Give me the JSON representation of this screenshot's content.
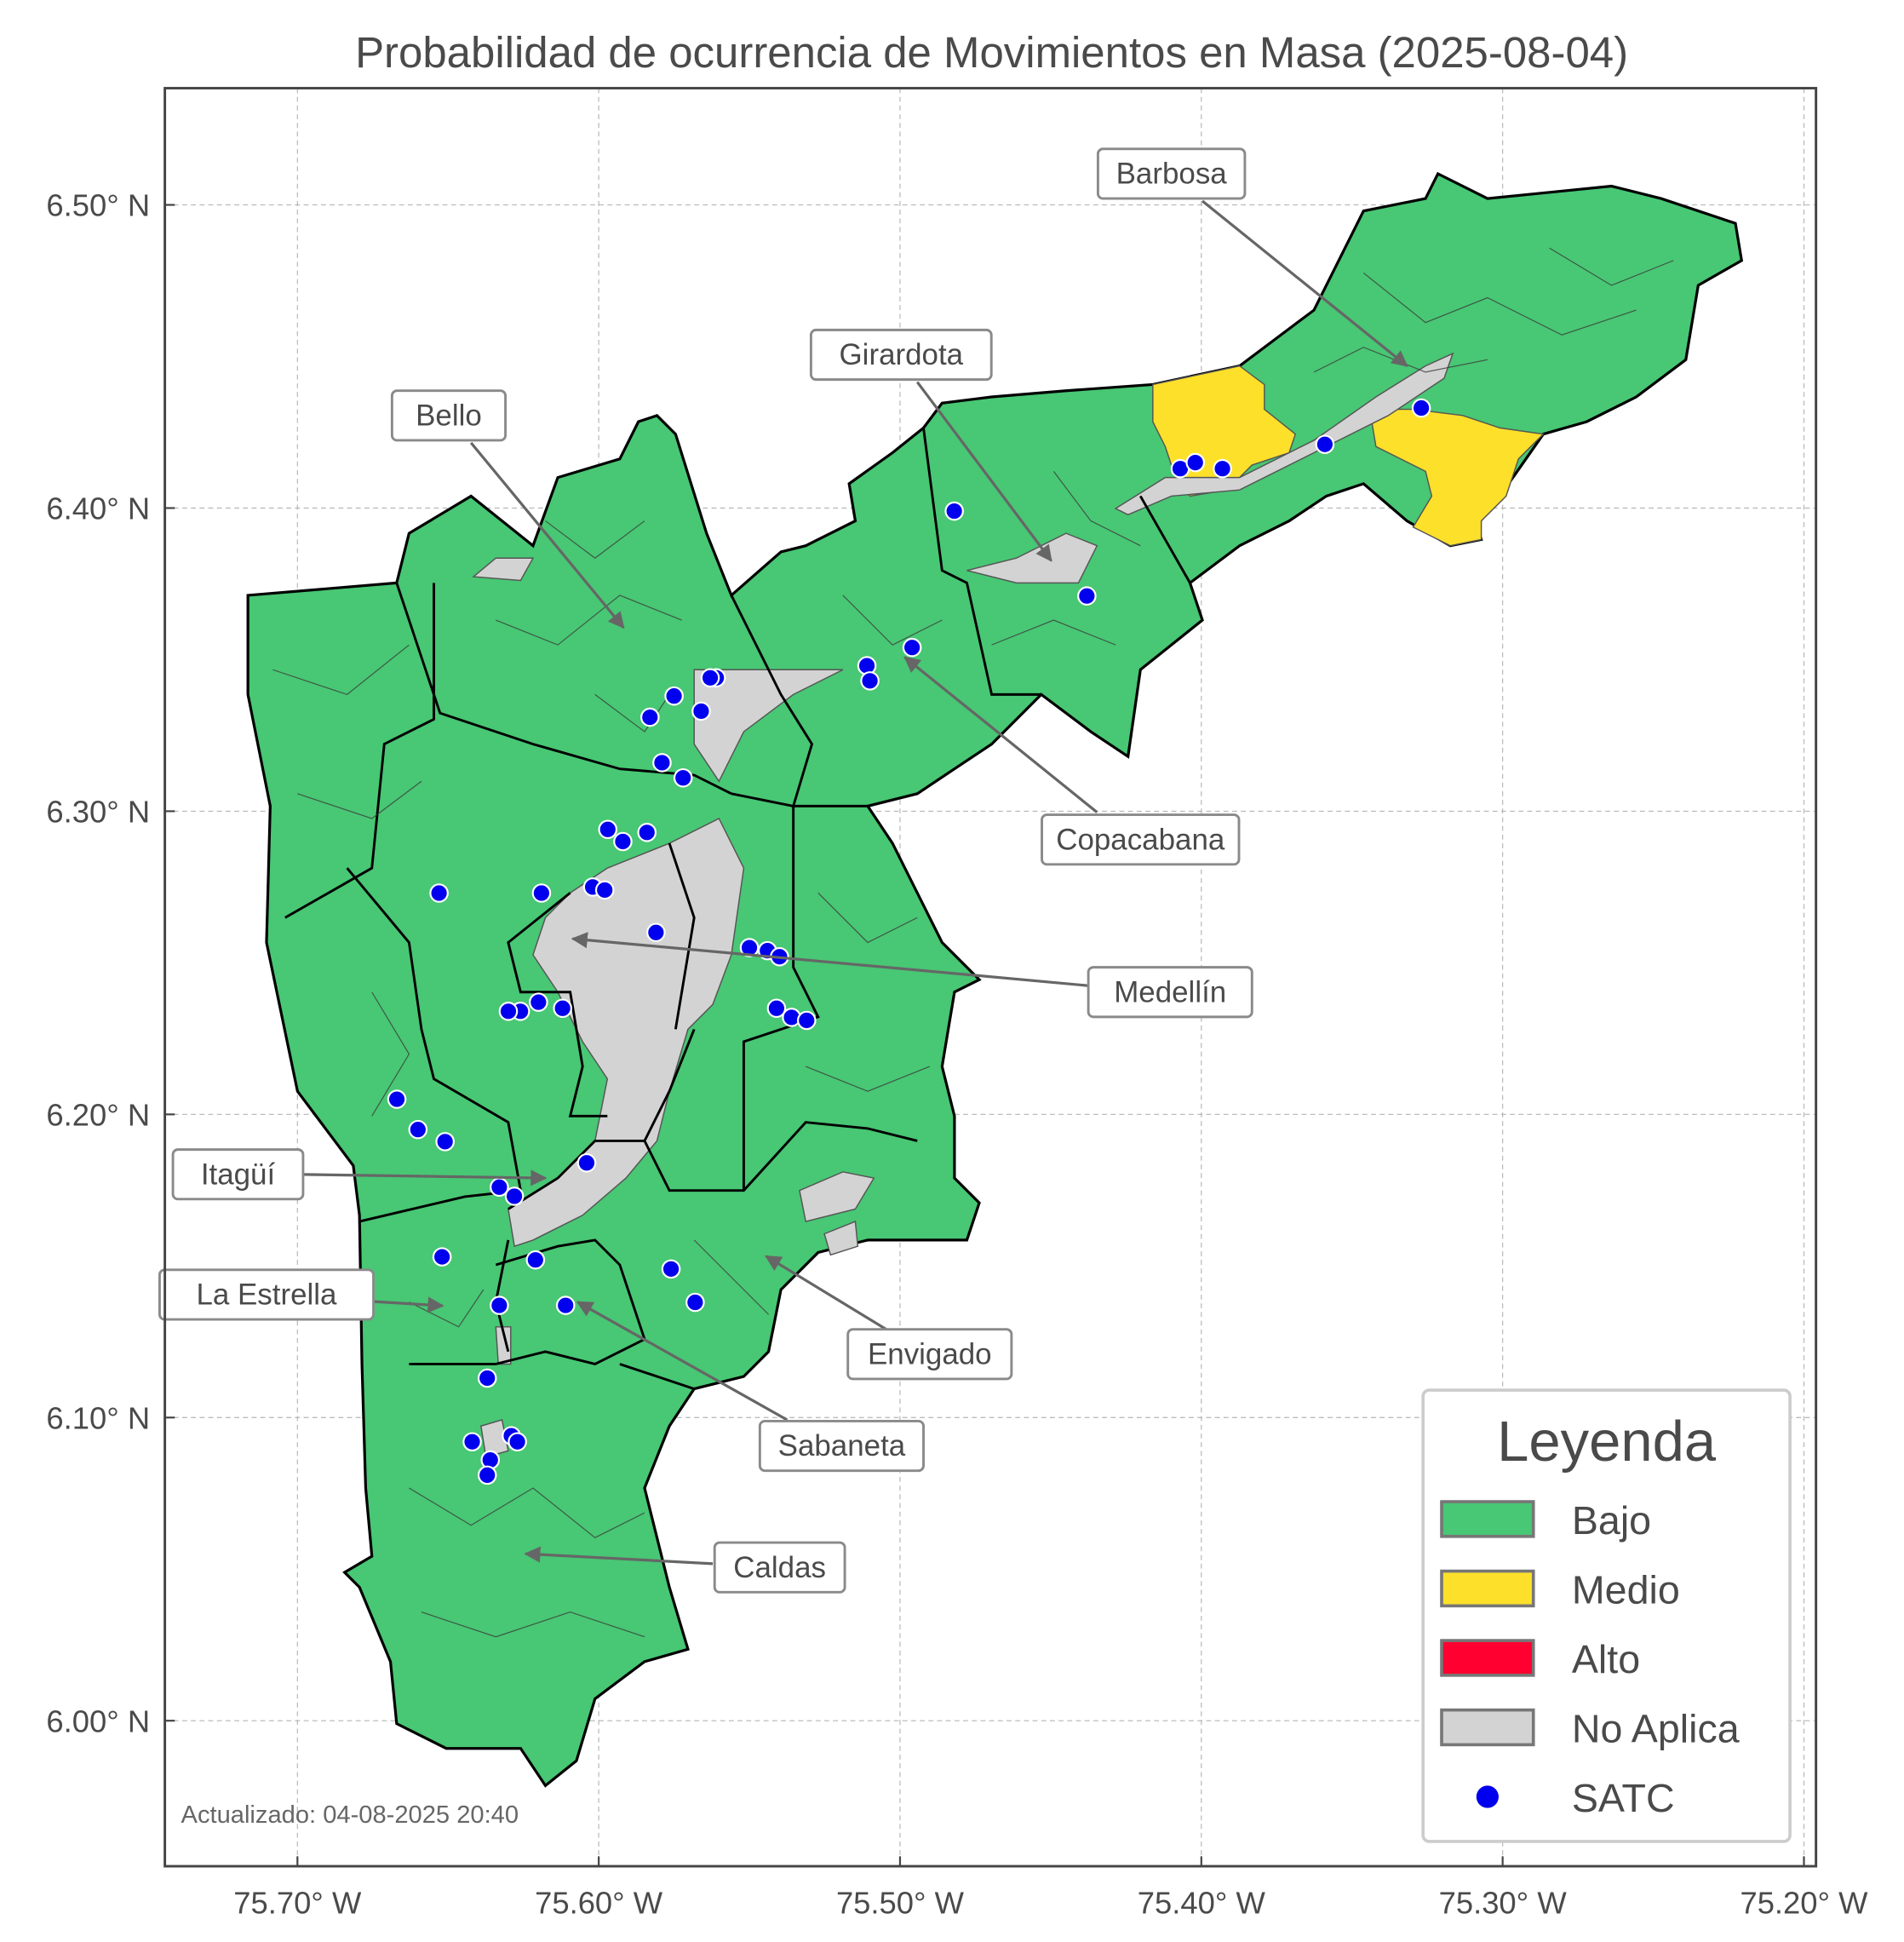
{
  "title": "Probabilidad de ocurrencia de Movimientos en Masa (2025-08-04)",
  "footer": "Actualizado: 04-08-2025 20:40",
  "axes": {
    "xlim": [
      -75.744,
      -75.196
    ],
    "ylim": [
      5.952,
      6.5385
    ],
    "x_ticks": [
      {
        "value": -75.7,
        "label": "75.70° W"
      },
      {
        "value": -75.6,
        "label": "75.60° W"
      },
      {
        "value": -75.5,
        "label": "75.50° W"
      },
      {
        "value": -75.4,
        "label": "75.40° W"
      },
      {
        "value": -75.3,
        "label": "75.30° W"
      },
      {
        "value": -75.2,
        "label": "75.20° W"
      }
    ],
    "y_ticks": [
      {
        "value": 6.0,
        "label": "6.00° N"
      },
      {
        "value": 6.1,
        "label": "6.10° N"
      },
      {
        "value": 6.2,
        "label": "6.20° N"
      },
      {
        "value": 6.3,
        "label": "6.30° N"
      },
      {
        "value": 6.4,
        "label": "6.40° N"
      },
      {
        "value": 6.5,
        "label": "6.50° N"
      }
    ],
    "grid": true
  },
  "legend": {
    "title": "Leyenda",
    "placement": "bottom-right",
    "items": [
      {
        "label": "Bajo",
        "color": "#48c774",
        "kind": "patch"
      },
      {
        "label": "Medio",
        "color": "#fde02a",
        "kind": "patch"
      },
      {
        "label": "Alto",
        "color": "#ff0030",
        "kind": "patch"
      },
      {
        "label": "No Aplica",
        "color": "#d3d3d3",
        "kind": "patch"
      },
      {
        "label": "SATC",
        "color": "#0000ee",
        "kind": "point"
      }
    ]
  },
  "municipalities": [
    {
      "name": "Barbosa",
      "level": "Bajo/Medio"
    },
    {
      "name": "Girardota",
      "level": "Bajo"
    },
    {
      "name": "Bello",
      "level": "Bajo"
    },
    {
      "name": "Copacabana",
      "level": "Bajo"
    },
    {
      "name": "Medellín",
      "level": "Bajo"
    },
    {
      "name": "Itagüí",
      "level": "Bajo"
    },
    {
      "name": "La Estrella",
      "level": "Bajo"
    },
    {
      "name": "Envigado",
      "level": "Bajo"
    },
    {
      "name": "Sabaneta",
      "level": "Bajo"
    },
    {
      "name": "Caldas",
      "level": "Bajo"
    }
  ],
  "satc_points": [
    [
      -75.482,
      6.399
    ],
    [
      -75.438,
      6.371
    ],
    [
      -75.407,
      6.413
    ],
    [
      -75.402,
      6.415
    ],
    [
      -75.393,
      6.413
    ],
    [
      -75.359,
      6.421
    ],
    [
      -75.327,
      6.433
    ],
    [
      -75.496,
      6.354
    ],
    [
      -75.511,
      6.348
    ],
    [
      -75.51,
      6.343
    ],
    [
      -75.561,
      6.344
    ],
    [
      -75.563,
      6.344
    ],
    [
      -75.575,
      6.338
    ],
    [
      -75.566,
      6.333
    ],
    [
      -75.583,
      6.331
    ],
    [
      -75.579,
      6.316
    ],
    [
      -75.572,
      6.311
    ],
    [
      -75.597,
      6.294
    ],
    [
      -75.592,
      6.29
    ],
    [
      -75.584,
      6.293
    ],
    [
      -75.653,
      6.273
    ],
    [
      -75.619,
      6.273
    ],
    [
      -75.602,
      6.275
    ],
    [
      -75.598,
      6.274
    ],
    [
      -75.581,
      6.26
    ],
    [
      -75.55,
      6.255
    ],
    [
      -75.544,
      6.254
    ],
    [
      -75.54,
      6.252
    ],
    [
      -75.541,
      6.235
    ],
    [
      -75.536,
      6.232
    ],
    [
      -75.531,
      6.231
    ],
    [
      -75.62,
      6.237
    ],
    [
      -75.626,
      6.234
    ],
    [
      -75.63,
      6.234
    ],
    [
      -75.612,
      6.235
    ],
    [
      -75.667,
      6.205
    ],
    [
      -75.66,
      6.195
    ],
    [
      -75.651,
      6.191
    ],
    [
      -75.604,
      6.184
    ],
    [
      -75.633,
      6.176
    ],
    [
      -75.628,
      6.173
    ],
    [
      -75.652,
      6.153
    ],
    [
      -75.621,
      6.152
    ],
    [
      -75.576,
      6.149
    ],
    [
      -75.568,
      6.138
    ],
    [
      -75.633,
      6.137
    ],
    [
      -75.611,
      6.137
    ],
    [
      -75.637,
      6.113
    ],
    [
      -75.642,
      6.092
    ],
    [
      -75.629,
      6.094
    ],
    [
      -75.627,
      6.092
    ],
    [
      -75.636,
      6.086
    ],
    [
      -75.637,
      6.081
    ]
  ]
}
